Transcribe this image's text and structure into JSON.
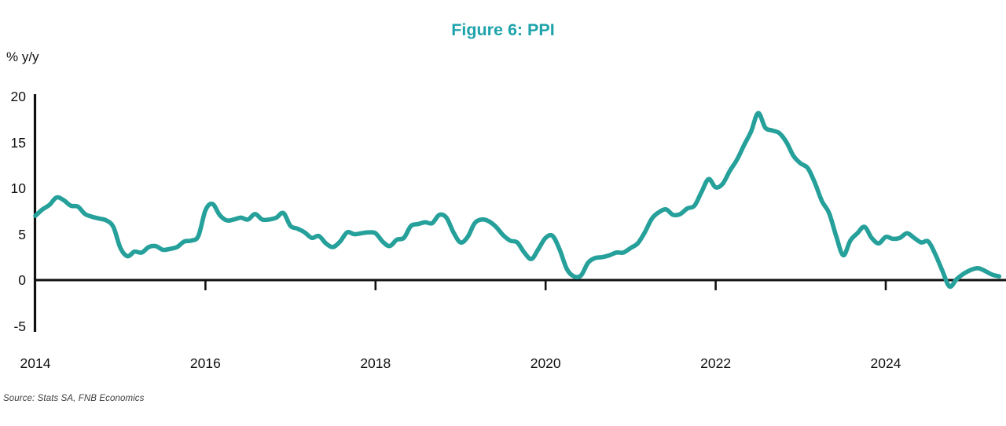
{
  "chart": {
    "title": "Figure 6: PPI",
    "y_unit": "% y/y",
    "source": "Source: Stats SA, FNB Economics",
    "title_color": "#1FA3AB",
    "line_color": "#26A09A",
    "axis_color": "#111111"
  },
  "chart_data": {
    "type": "line",
    "title": "Figure 6: PPI",
    "xlabel": "",
    "ylabel": "% y/y",
    "ylim": [
      -5,
      20
    ],
    "xlim": [
      2014,
      2025.42
    ],
    "yticks": [
      20,
      15,
      10,
      5,
      0,
      -5
    ],
    "xticks": [
      2014,
      2016,
      2018,
      2020,
      2022,
      2024
    ],
    "grid": false,
    "legend_position": "none",
    "zero_baseline": true,
    "series": [
      {
        "name": "PPI % y/y",
        "frequency": "monthly",
        "x_start": "2014-01",
        "x_end": "2025-05",
        "values": [
          7.0,
          7.7,
          8.2,
          9.0,
          8.7,
          8.1,
          8.0,
          7.2,
          6.9,
          6.7,
          6.5,
          5.8,
          3.5,
          2.6,
          3.1,
          3.0,
          3.6,
          3.7,
          3.3,
          3.4,
          3.6,
          4.2,
          4.3,
          4.8,
          7.6,
          8.3,
          7.1,
          6.5,
          6.6,
          6.8,
          6.6,
          7.2,
          6.6,
          6.6,
          6.8,
          7.3,
          5.9,
          5.6,
          5.2,
          4.6,
          4.8,
          4.0,
          3.6,
          4.2,
          5.2,
          5.0,
          5.1,
          5.2,
          5.1,
          4.2,
          3.7,
          4.4,
          4.6,
          5.9,
          6.1,
          6.3,
          6.2,
          7.1,
          6.8,
          5.2,
          4.1,
          4.7,
          6.2,
          6.6,
          6.4,
          5.8,
          4.9,
          4.3,
          4.1,
          3.0,
          2.3,
          3.4,
          4.6,
          4.8,
          3.3,
          1.2,
          0.4,
          0.5,
          1.9,
          2.4,
          2.5,
          2.7,
          3.0,
          3.0,
          3.5,
          4.0,
          5.2,
          6.7,
          7.4,
          7.7,
          7.1,
          7.2,
          7.8,
          8.1,
          9.6,
          11.0,
          10.1,
          10.5,
          11.9,
          13.1,
          14.7,
          16.2,
          18.2,
          16.6,
          16.3,
          16.0,
          15.0,
          13.5,
          12.7,
          12.2,
          10.6,
          8.6,
          7.3,
          4.8,
          2.7,
          4.3,
          5.1,
          5.8,
          4.6,
          4.0,
          4.7,
          4.5,
          4.6,
          5.1,
          4.6,
          4.1,
          4.2,
          2.8,
          1.0,
          -0.7,
          0.1,
          0.7,
          1.1,
          1.3,
          1.0,
          0.6,
          0.4
        ]
      }
    ],
    "source": "Source: Stats SA, FNB Economics"
  }
}
